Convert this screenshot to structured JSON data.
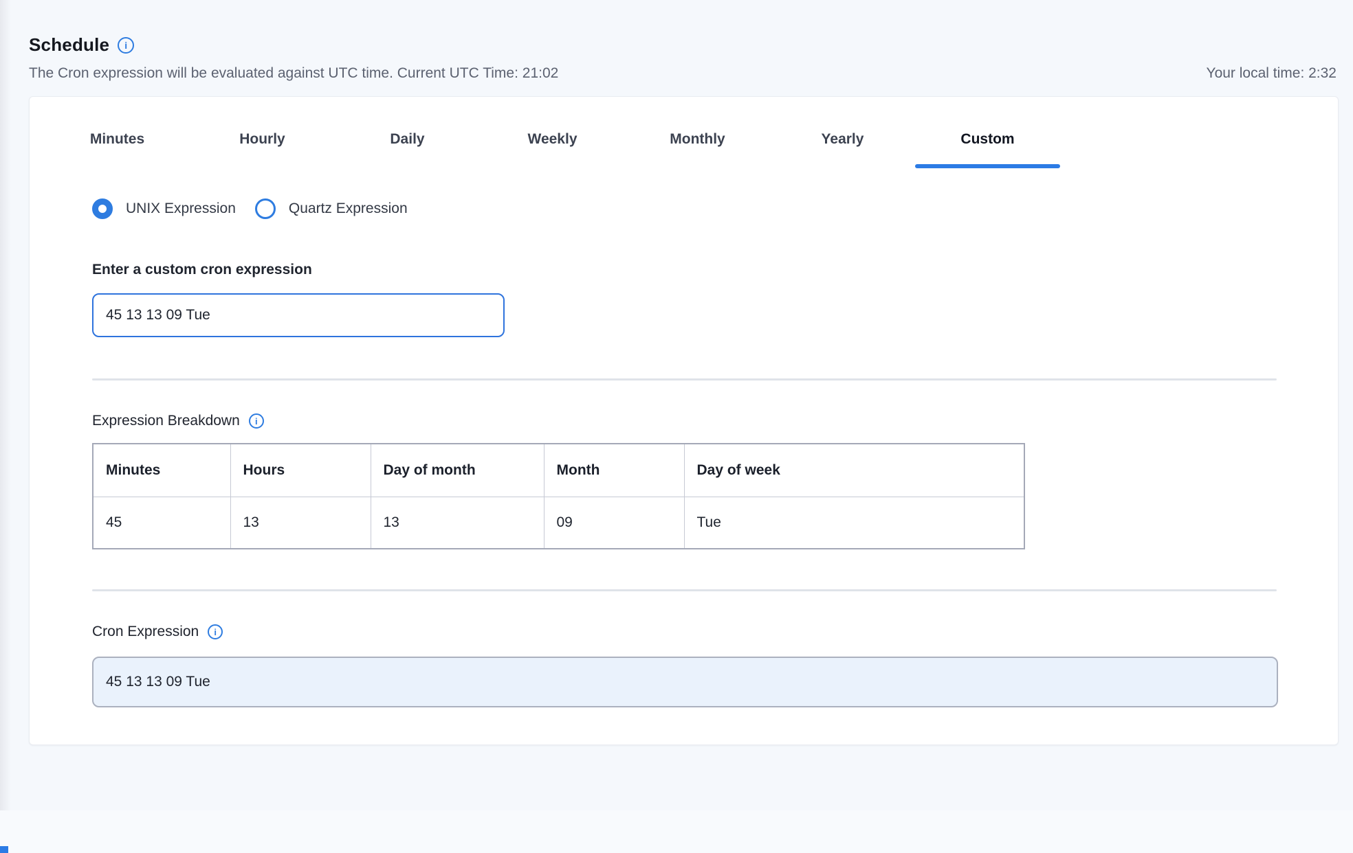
{
  "header": {
    "title": "Schedule",
    "subtitle": "The Cron expression will be evaluated against UTC time. Current UTC Time: 21:02",
    "local_time": "Your local time: 2:32"
  },
  "tabs": {
    "items": [
      {
        "label": "Minutes",
        "active": false
      },
      {
        "label": "Hourly",
        "active": false
      },
      {
        "label": "Daily",
        "active": false
      },
      {
        "label": "Weekly",
        "active": false
      },
      {
        "label": "Monthly",
        "active": false
      },
      {
        "label": "Yearly",
        "active": false
      },
      {
        "label": "Custom",
        "active": true
      }
    ]
  },
  "expression_type": {
    "options": [
      {
        "label": "UNIX Expression",
        "selected": true
      },
      {
        "label": "Quartz Expression",
        "selected": false
      }
    ]
  },
  "custom_expression": {
    "label": "Enter a custom cron expression",
    "value": "45 13 13 09 Tue"
  },
  "breakdown": {
    "title": "Expression Breakdown",
    "columns": [
      "Minutes",
      "Hours",
      "Day of month",
      "Month",
      "Day of week"
    ],
    "rows": [
      [
        "45",
        "13",
        "13",
        "09",
        "Tue"
      ]
    ]
  },
  "cron_output": {
    "label": "Cron Expression",
    "value": "45 13 13 09 Tue"
  },
  "colors": {
    "accent": "#2c7be5",
    "info_blue": "#2e7ce0",
    "readonly_bg": "#eaf2fc",
    "page_bg": "#f5f8fc"
  }
}
